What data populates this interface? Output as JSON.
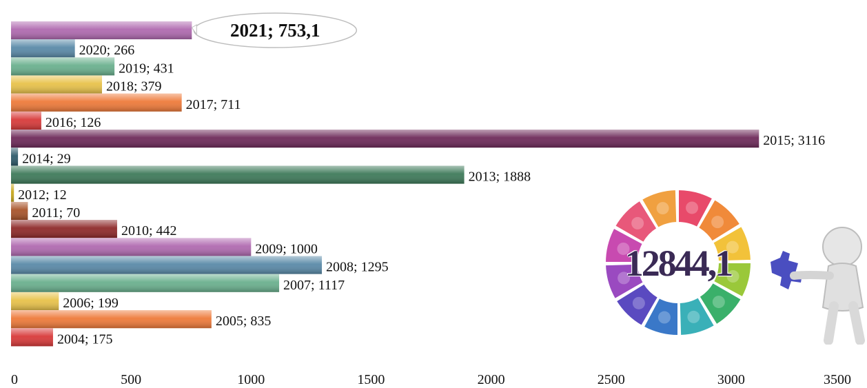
{
  "chart_data": {
    "type": "bar",
    "orientation": "horizontal",
    "title": "",
    "xlabel": "",
    "ylabel": "",
    "xlim": [
      0,
      3500
    ],
    "xticks": [
      "0",
      "500",
      "1000",
      "1500",
      "2000",
      "2500",
      "3000",
      "3500"
    ],
    "grid": false,
    "legend": "none",
    "bars": [
      {
        "category": "2021",
        "value": 753.1,
        "label": "2021; 753,1",
        "color": "#b06ab0",
        "highlight": true
      },
      {
        "category": "2020",
        "value": 266,
        "label": "2020; 266",
        "color": "#5a8aa8"
      },
      {
        "category": "2019",
        "value": 431,
        "label": "2019; 431",
        "color": "#6ab08e"
      },
      {
        "category": "2018",
        "value": 379,
        "label": "2018; 379",
        "color": "#e8c24a"
      },
      {
        "category": "2017",
        "value": 711,
        "label": "2017; 711",
        "color": "#ee7a3a"
      },
      {
        "category": "2016",
        "value": 126,
        "label": "2016; 126",
        "color": "#d83a3a"
      },
      {
        "category": "2015",
        "value": 3116,
        "label": "2015; 3116",
        "color": "#6e2a5a"
      },
      {
        "category": "2014",
        "value": 29,
        "label": "2014; 29",
        "color": "#2e5a6a"
      },
      {
        "category": "2013",
        "value": 1888,
        "label": "2013; 1888",
        "color": "#3e7a5a"
      },
      {
        "category": "2012",
        "value": 12,
        "label": "2012; 12",
        "color": "#c8a81e"
      },
      {
        "category": "2011",
        "value": 70,
        "label": "2011; 70",
        "color": "#a8542a"
      },
      {
        "category": "2010",
        "value": 442,
        "label": "2010; 442",
        "color": "#8e2a2a"
      },
      {
        "category": "2009",
        "value": 1000,
        "label": "2009; 1000",
        "color": "#b06ab0"
      },
      {
        "category": "2008",
        "value": 1295,
        "label": "2008; 1295",
        "color": "#5a8aa8"
      },
      {
        "category": "2007",
        "value": 1117,
        "label": "2007; 1117",
        "color": "#6ab08e"
      },
      {
        "category": "2006",
        "value": 199,
        "label": "2006; 199",
        "color": "#e8c24a"
      },
      {
        "category": "2005",
        "value": 835,
        "label": "2005; 835",
        "color": "#ee7a3a"
      },
      {
        "category": "2004",
        "value": 175,
        "label": "2004; 175",
        "color": "#d83a3a"
      }
    ]
  },
  "total": {
    "value": "12844,1",
    "icon": "puzzle-ring-icon",
    "figure": "person-with-puzzle-piece-icon"
  }
}
